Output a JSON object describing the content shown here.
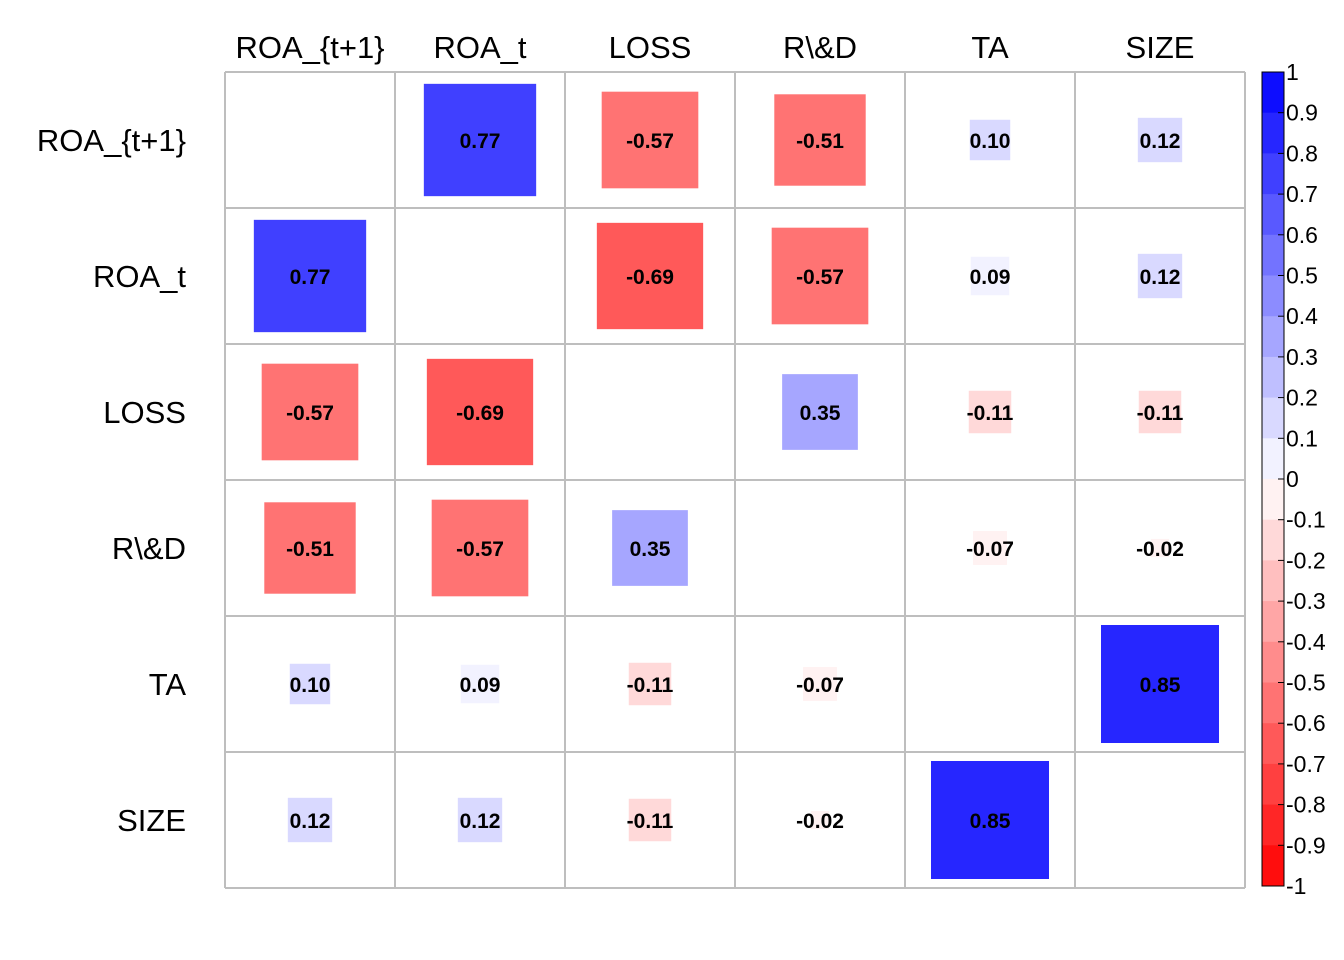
{
  "chart_data": {
    "type": "heatmap",
    "variables": [
      "ROA_{t+1}",
      "ROA_t",
      "LOSS",
      "R\\&D",
      "TA",
      "SIZE"
    ],
    "matrix": [
      [
        null,
        0.77,
        -0.57,
        -0.51,
        0.1,
        0.12
      ],
      [
        0.77,
        null,
        -0.69,
        -0.57,
        0.09,
        0.12
      ],
      [
        -0.57,
        -0.69,
        null,
        0.35,
        -0.11,
        -0.11
      ],
      [
        -0.51,
        -0.57,
        0.35,
        null,
        -0.07,
        -0.02
      ],
      [
        0.1,
        0.09,
        -0.11,
        -0.07,
        null,
        0.85
      ],
      [
        0.12,
        0.12,
        -0.11,
        -0.02,
        0.85,
        null
      ]
    ],
    "value_labels": [
      [
        "",
        "0.77",
        "-0.57",
        "-0.51",
        "0.10",
        "0.12"
      ],
      [
        "0.77",
        "",
        "-0.69",
        "-0.57",
        "0.09",
        "0.12"
      ],
      [
        "-0.57",
        "-0.69",
        "",
        "0.35",
        "-0.11",
        "-0.11"
      ],
      [
        "-0.51",
        "-0.57",
        "0.35",
        "",
        "-0.07",
        "-0.02"
      ],
      [
        "0.10",
        "0.09",
        "-0.11",
        "-0.07",
        "",
        "0.85"
      ],
      [
        "0.12",
        "0.12",
        "-0.11",
        "-0.02",
        "0.85",
        ""
      ]
    ],
    "diagonal_blank": true,
    "color_scale": {
      "range": [
        -1,
        1
      ],
      "low_color": "#FF0000",
      "mid_color": "#FFFFFF",
      "high_color": "#0000FF",
      "tick_labels": [
        "1",
        "0.9",
        "0.8",
        "0.7",
        "0.6",
        "0.5",
        "0.4",
        "0.3",
        "0.2",
        "0.1",
        "0",
        "-0.1",
        "-0.2",
        "-0.3",
        "-0.4",
        "-0.5",
        "-0.6",
        "-0.7",
        "-0.8",
        "-0.9",
        "-1"
      ]
    },
    "colorbar_position": "right",
    "grid_color": "#BEBEBE"
  }
}
